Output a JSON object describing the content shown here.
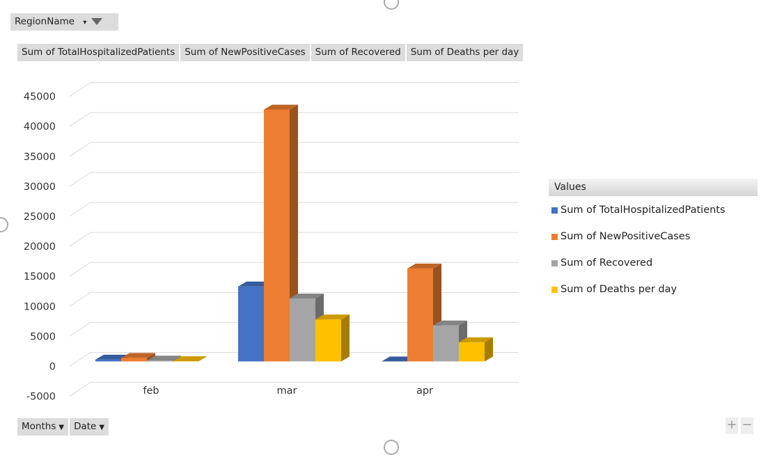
{
  "region_filter": {
    "label": "RegionName",
    "icon": "filter-icon"
  },
  "axis_buttons": [
    {
      "label": "Months",
      "icon": "dropdown-arrow-icon"
    },
    {
      "label": "Date",
      "icon": "dropdown-arrow-icon"
    }
  ],
  "legend": {
    "title": "Values"
  },
  "zoom": {
    "plus": "+",
    "minus": "−"
  },
  "chart_data": {
    "type": "bar",
    "categories": [
      "feb",
      "mar",
      "apr"
    ],
    "series": [
      {
        "name": "Sum of TotalHospitalizedPatients",
        "color": "#4472c4",
        "values": [
          300,
          12500,
          0
        ]
      },
      {
        "name": "Sum of NewPositiveCases",
        "color": "#ed7d31",
        "values": [
          600,
          42000,
          15500
        ]
      },
      {
        "name": "Sum of Recovered",
        "color": "#a5a5a5",
        "values": [
          150,
          10500,
          6000
        ]
      },
      {
        "name": "Sum of Deaths per day",
        "color": "#ffc000",
        "values": [
          50,
          7000,
          3200
        ]
      }
    ],
    "ylim": [
      -5000,
      45000
    ],
    "yticks": [
      -5000,
      0,
      5000,
      10000,
      15000,
      20000,
      25000,
      30000,
      35000,
      40000,
      45000
    ],
    "grid": true,
    "legend_position": "right",
    "style": "3d-clustered-column"
  }
}
